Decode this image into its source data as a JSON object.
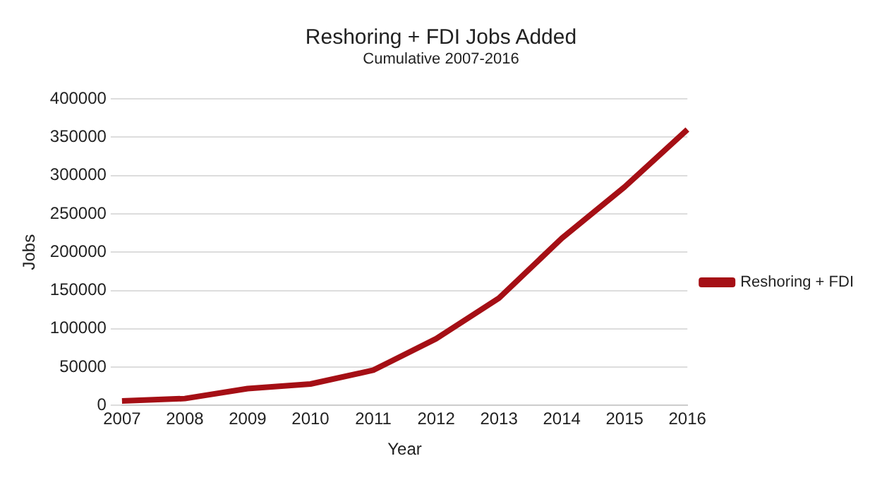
{
  "chart_data": {
    "type": "line",
    "title": "Reshoring + FDI Jobs Added",
    "subtitle": "Cumulative 2007-2016",
    "xlabel": "Year",
    "ylabel": "Jobs",
    "categories": [
      "2007",
      "2008",
      "2009",
      "2010",
      "2011",
      "2012",
      "2013",
      "2014",
      "2015",
      "2016"
    ],
    "series": [
      {
        "name": "Reshoring + FDI",
        "color": "#a50f15",
        "values": [
          6000,
          9000,
          22000,
          28000,
          46000,
          87000,
          140000,
          218000,
          285000,
          360000
        ]
      }
    ],
    "ylim": [
      0,
      400000
    ],
    "yticks": [
      0,
      50000,
      100000,
      150000,
      200000,
      250000,
      300000,
      350000,
      400000
    ],
    "grid": "y",
    "legend": "right"
  }
}
